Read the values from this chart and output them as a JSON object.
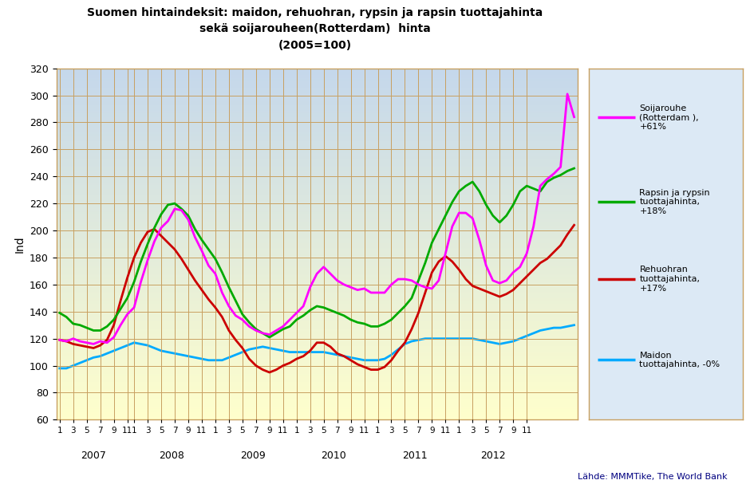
{
  "title_line1": "Suomen hintaindeksit: maidon, rehuohran, rypsin ja rapsin tuottajahinta",
  "title_line2": "sekä soijarouheen(Rotterdam)  hinta",
  "title_line3": "(2005=100)",
  "ylabel": "Ind",
  "source": "Lähde: MMMTike, The World Bank",
  "ylim": [
    60,
    320
  ],
  "yticks": [
    60,
    80,
    100,
    120,
    140,
    160,
    180,
    200,
    220,
    240,
    260,
    280,
    300,
    320
  ],
  "background_top": "#c5d8ec",
  "background_bottom": "#ffffcc",
  "background_legend": "#dce9f5",
  "grid_color": "#c8a060",
  "legend_entries": [
    {
      "label": "Soijarouhe\n(Rotterdam ),\n+61%",
      "color": "#ff00ff"
    },
    {
      "label": "Rapsin ja rypsin\ntuottajahinta,\n+18%",
      "color": "#00aa00"
    },
    {
      "label": "Rehuohran\ntuottajahinta,\n+17%",
      "color": "#cc0000"
    },
    {
      "label": "Maidon\ntuottajahinta, -0%",
      "color": "#00aaff"
    }
  ],
  "soijarouhe": [
    119,
    118,
    120,
    118,
    117,
    116,
    118,
    117,
    121,
    130,
    138,
    143,
    162,
    178,
    192,
    202,
    207,
    216,
    215,
    208,
    195,
    185,
    174,
    168,
    154,
    144,
    137,
    134,
    129,
    126,
    124,
    123,
    126,
    129,
    134,
    139,
    144,
    158,
    168,
    173,
    168,
    163,
    160,
    158,
    156,
    157,
    154,
    154,
    154,
    160,
    164,
    164,
    163,
    160,
    158,
    157,
    163,
    183,
    203,
    213,
    213,
    209,
    193,
    174,
    163,
    161,
    163,
    169,
    173,
    183,
    203,
    233,
    238,
    242,
    247,
    301,
    284
  ],
  "rapsin": [
    139,
    136,
    131,
    130,
    128,
    126,
    126,
    129,
    134,
    142,
    150,
    162,
    177,
    190,
    202,
    212,
    219,
    220,
    216,
    211,
    201,
    193,
    186,
    179,
    169,
    158,
    148,
    138,
    132,
    127,
    124,
    121,
    124,
    127,
    129,
    134,
    137,
    141,
    144,
    143,
    141,
    139,
    137,
    134,
    132,
    131,
    129,
    129,
    131,
    134,
    139,
    144,
    150,
    163,
    176,
    191,
    201,
    211,
    221,
    229,
    233,
    236,
    229,
    219,
    211,
    206,
    211,
    219,
    229,
    233,
    231,
    229,
    236,
    239,
    241,
    244,
    246
  ],
  "rehuohran": [
    119,
    118,
    116,
    115,
    114,
    113,
    115,
    119,
    130,
    148,
    165,
    180,
    191,
    199,
    201,
    196,
    191,
    186,
    179,
    171,
    163,
    156,
    149,
    143,
    136,
    126,
    119,
    113,
    105,
    100,
    97,
    95,
    97,
    100,
    102,
    105,
    107,
    111,
    117,
    117,
    114,
    109,
    107,
    104,
    101,
    99,
    97,
    97,
    99,
    104,
    111,
    117,
    127,
    139,
    154,
    169,
    177,
    181,
    177,
    171,
    164,
    159,
    157,
    155,
    153,
    151,
    153,
    156,
    161,
    166,
    171,
    176,
    179,
    184,
    189,
    197,
    204
  ],
  "maidon": [
    98,
    98,
    100,
    102,
    104,
    106,
    107,
    109,
    111,
    113,
    115,
    117,
    116,
    115,
    113,
    111,
    110,
    109,
    108,
    107,
    106,
    105,
    104,
    104,
    104,
    106,
    108,
    110,
    112,
    113,
    114,
    113,
    112,
    111,
    110,
    110,
    110,
    110,
    110,
    110,
    109,
    108,
    107,
    106,
    105,
    104,
    104,
    104,
    105,
    108,
    112,
    116,
    118,
    119,
    120,
    120,
    120,
    120,
    120,
    120,
    120,
    120,
    119,
    118,
    117,
    116,
    117,
    118,
    120,
    122,
    124,
    126,
    127,
    128,
    128,
    129,
    130
  ],
  "year_starts": [
    0,
    11,
    23,
    35,
    47,
    59
  ],
  "months_per_year": [
    11,
    12,
    12,
    12,
    12,
    11
  ],
  "x_year_labels": [
    "2007",
    "2008",
    "2009",
    "2010",
    "2011",
    "2012"
  ]
}
